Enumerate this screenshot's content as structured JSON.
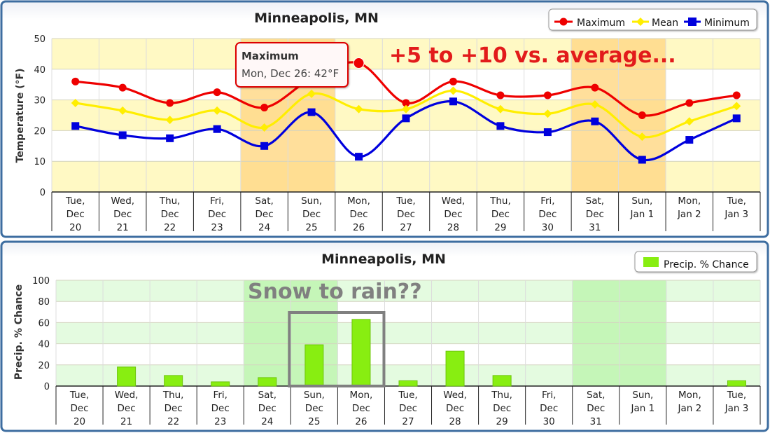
{
  "chart_data": [
    {
      "type": "line",
      "title": "Minneapolis, MN",
      "ylabel": "Temperature (°F)",
      "ylim": [
        0,
        50
      ],
      "yticks": [
        0,
        10,
        20,
        30,
        40,
        50
      ],
      "grid": true,
      "legend_position": "top-right",
      "categories": [
        [
          "Tue,",
          "Dec",
          "20"
        ],
        [
          "Wed,",
          "Dec",
          "21"
        ],
        [
          "Thu,",
          "Dec",
          "22"
        ],
        [
          "Fri,",
          "Dec",
          "23"
        ],
        [
          "Sat,",
          "Dec",
          "24"
        ],
        [
          "Sun,",
          "Dec",
          "25"
        ],
        [
          "Mon,",
          "Dec",
          "26"
        ],
        [
          "Tue,",
          "Dec",
          "27"
        ],
        [
          "Wed,",
          "Dec",
          "28"
        ],
        [
          "Thu,",
          "Dec",
          "29"
        ],
        [
          "Fri,",
          "Dec",
          "30"
        ],
        [
          "Sat,",
          "Dec",
          "31"
        ],
        [
          "Sun,",
          "Jan 1"
        ],
        [
          "Mon,",
          "Jan 2"
        ],
        [
          "Tue,",
          "Jan 3"
        ]
      ],
      "series": [
        {
          "name": "Maximum",
          "color": "#ee0000",
          "marker": "circle",
          "values": [
            36,
            34,
            29,
            32.5,
            27.5,
            37,
            42,
            29,
            36,
            31.5,
            31.5,
            34,
            25,
            29,
            31.5
          ]
        },
        {
          "name": "Mean",
          "color": "#ffee00",
          "marker": "diamond",
          "values": [
            29,
            26.5,
            23.5,
            26.5,
            21,
            32,
            27,
            27,
            33,
            27,
            25.5,
            28.5,
            18,
            23,
            28
          ]
        },
        {
          "name": "Minimum",
          "color": "#0000dd",
          "marker": "square",
          "values": [
            21.5,
            18.5,
            17.5,
            20.5,
            15,
            26,
            11.5,
            24,
            29.5,
            21.5,
            19.5,
            23,
            10.5,
            17,
            24
          ]
        }
      ],
      "highlight_columns": [
        4,
        5,
        11,
        12
      ],
      "tooltip": {
        "title": "Maximum",
        "text": "Mon, Dec 26: 42°F",
        "point_index": 6
      },
      "annotation": "+5 to +10 vs. average...",
      "colors": {
        "annotation": "#e21b1b",
        "band_light": "#fff9c4",
        "band_highlight": "#ffd98a"
      }
    },
    {
      "type": "bar",
      "title": "Minneapolis, MN",
      "ylabel": "Precip. % Chance",
      "ylim": [
        0,
        100
      ],
      "yticks": [
        0,
        20,
        40,
        60,
        80,
        100
      ],
      "grid": true,
      "legend_position": "top-right",
      "categories": [
        [
          "Tue,",
          "Dec",
          "20"
        ],
        [
          "Wed,",
          "Dec",
          "21"
        ],
        [
          "Thu,",
          "Dec",
          "22"
        ],
        [
          "Fri,",
          "Dec",
          "23"
        ],
        [
          "Sat,",
          "Dec",
          "24"
        ],
        [
          "Sun,",
          "Dec",
          "25"
        ],
        [
          "Mon,",
          "Dec",
          "26"
        ],
        [
          "Tue,",
          "Dec",
          "27"
        ],
        [
          "Wed,",
          "Dec",
          "28"
        ],
        [
          "Thu,",
          "Dec",
          "29"
        ],
        [
          "Fri,",
          "Dec",
          "30"
        ],
        [
          "Sat,",
          "Dec",
          "31"
        ],
        [
          "Sun,",
          "Jan 1"
        ],
        [
          "Mon,",
          "Jan 2"
        ],
        [
          "Tue,",
          "Jan 3"
        ]
      ],
      "series": [
        {
          "name": "Precip. % Chance",
          "color": "#88ee11",
          "values": [
            0,
            18,
            10,
            4,
            8,
            39,
            63,
            5,
            33,
            10,
            0,
            0,
            0,
            0,
            5
          ]
        }
      ],
      "highlight_columns": [
        4,
        5,
        11,
        12
      ],
      "boxed_columns": [
        5,
        6
      ],
      "annotation": "Snow to rain??",
      "colors": {
        "annotation": "#808080",
        "band_light": "#e4fbe0",
        "band_highlight": "#bff5b0"
      }
    }
  ]
}
